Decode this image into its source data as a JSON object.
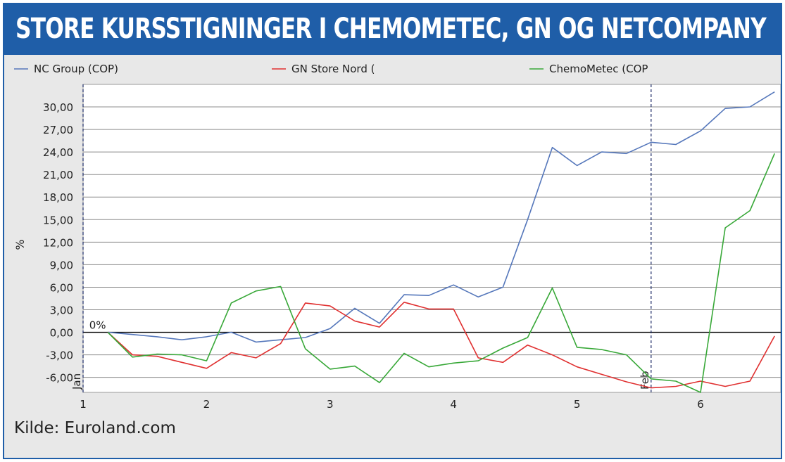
{
  "title": "STORE KURSSTIGNINGER I CHEMOMETEC, GN OG NETCOMPANY",
  "source": "Kilde: Euroland.com",
  "colors": {
    "brand": "#1f5ea8",
    "nc_group": "#5577bb",
    "gn_store_nord": "#e03030",
    "chemometec": "#38a838"
  },
  "chart_data": {
    "type": "line",
    "ylabel": "%",
    "xlabel": "",
    "xlim": [
      1,
      6.65
    ],
    "ylim": [
      -8.0,
      33.0
    ],
    "x_ticks": [
      "1",
      "2",
      "3",
      "4",
      "5",
      "6"
    ],
    "y_ticks": [
      "30,00",
      "27,00",
      "24,00",
      "21,00",
      "18,00",
      "15,00",
      "12,00",
      "9,00",
      "6,00",
      "3,00",
      "0,00",
      "-3,00",
      "-6,00"
    ],
    "zero_label": "0%",
    "month_markers": [
      {
        "label": "Jan",
        "x": 1
      },
      {
        "label": "Feb",
        "x": 5.6
      }
    ],
    "grid": true,
    "legend_position": "top",
    "x": [
      1.2,
      1.4,
      1.6,
      1.8,
      2.0,
      2.2,
      2.4,
      2.6,
      2.8,
      3.0,
      3.2,
      3.4,
      3.6,
      3.8,
      4.0,
      4.2,
      4.4,
      4.6,
      4.8,
      5.0,
      5.2,
      5.4,
      5.6,
      5.8,
      6.0,
      6.2,
      6.4,
      6.6
    ],
    "series": [
      {
        "name": "NC Group (COP)",
        "color": "#5577bb",
        "values": [
          0.0,
          -0.3,
          -0.6,
          -1.0,
          -0.6,
          0.0,
          -1.3,
          -1.0,
          -0.7,
          0.5,
          3.2,
          1.2,
          5.0,
          4.9,
          6.3,
          4.7,
          6.0,
          15.0,
          24.6,
          22.2,
          24.0,
          23.8,
          25.3,
          25.0,
          26.8,
          29.8,
          30.0,
          32.0
        ]
      },
      {
        "name": "GN Store Nord (",
        "color": "#e03030",
        "values": [
          0.0,
          -3.0,
          -3.2,
          -4.0,
          -4.8,
          -2.7,
          -3.4,
          -1.5,
          3.9,
          3.5,
          1.5,
          0.7,
          4.0,
          3.1,
          3.1,
          -3.4,
          -4.0,
          -1.7,
          -3.0,
          -4.6,
          -5.6,
          -6.6,
          -7.4,
          -7.2,
          -6.5,
          -7.2,
          -6.5,
          -0.5
        ]
      },
      {
        "name": "ChemoMetec (COP",
        "color": "#38a838",
        "values": [
          0.0,
          -3.3,
          -2.9,
          -3.0,
          -3.8,
          3.9,
          5.5,
          6.1,
          -2.2,
          -4.9,
          -4.5,
          -6.7,
          -2.8,
          -4.6,
          -4.1,
          -3.8,
          -2.1,
          -0.7,
          5.9,
          -2.0,
          -2.3,
          -3.0,
          -6.2,
          -6.5,
          -8.0,
          13.9,
          16.2,
          23.8
        ]
      }
    ]
  }
}
